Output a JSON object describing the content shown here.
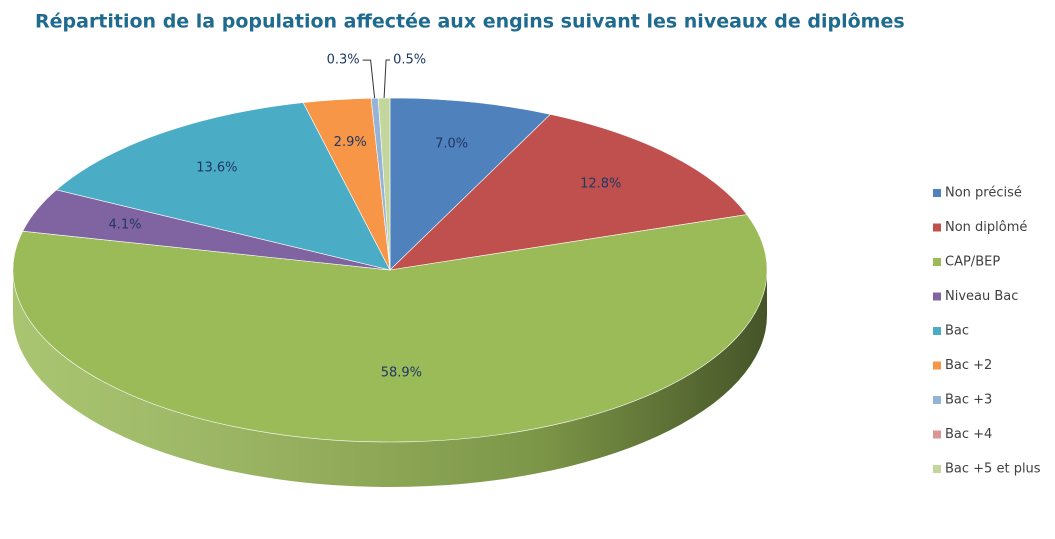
{
  "chart_data": {
    "type": "pie3d",
    "title": "Répartition de la population affectée aux engins suivant les niveaux de diplômes",
    "categories": [
      "Non précisé",
      "Non diplômé",
      "CAP/BEP",
      "Niveau Bac",
      "Bac",
      "Bac +2",
      "Bac +3",
      "Bac +4",
      "Bac +5 et plus"
    ],
    "values": [
      7.0,
      12.8,
      58.9,
      4.1,
      13.6,
      2.9,
      0.3,
      0,
      0.5
    ],
    "value_labels": [
      "7.0%",
      "12.8%",
      "58.9%",
      "4.1%",
      "13.6%",
      "2.9%",
      "0.3%",
      null,
      "0.5%"
    ],
    "colors": [
      "#4f81bd",
      "#c0504d",
      "#9bbb59",
      "#8064a2",
      "#4bacc6",
      "#f79646",
      "#95b3d7",
      "#d99694",
      "#c3d69b"
    ],
    "legend": "right"
  }
}
